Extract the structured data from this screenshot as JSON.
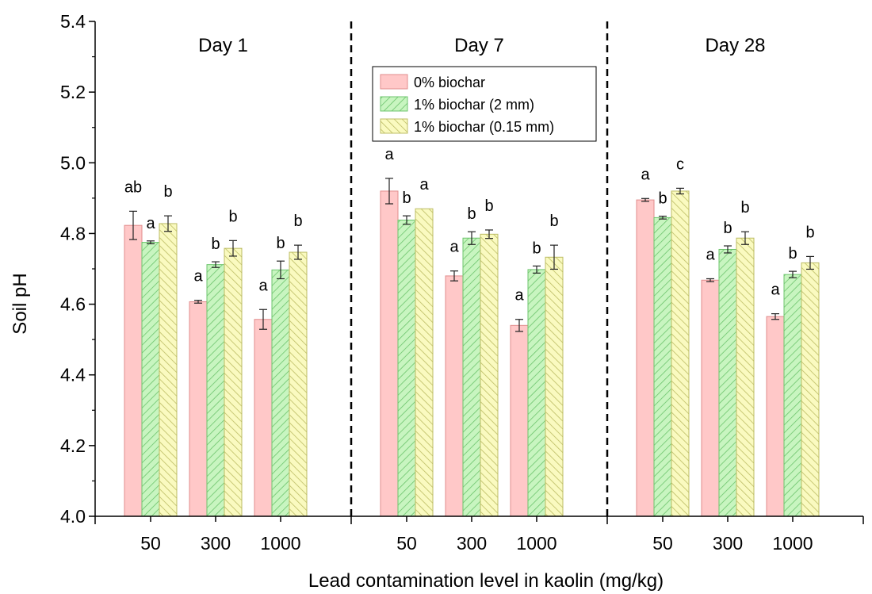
{
  "chart_data": {
    "type": "bar",
    "xlabel": "Lead contamination level in kaolin (mg/kg)",
    "ylabel": "Soil pH",
    "ylim": [
      4.0,
      5.4
    ],
    "yticks": [
      "4.0",
      "4.2",
      "4.4",
      "4.6",
      "4.8",
      "5.0",
      "5.2",
      "5.4"
    ],
    "legend_position": "top-center",
    "grid": false,
    "categories": [
      "50",
      "300",
      "1000"
    ],
    "panels": [
      {
        "label": "Day 1",
        "groups": [
          {
            "category": "50",
            "values": [
              4.823,
              4.775,
              4.828
            ],
            "errors": [
              0.04,
              0.004,
              0.022
            ],
            "letters": [
              "ab",
              "a",
              "b"
            ]
          },
          {
            "category": "300",
            "values": [
              4.607,
              4.712,
              4.758
            ],
            "errors": [
              0.004,
              0.008,
              0.022
            ],
            "letters": [
              "a",
              "b",
              "b"
            ]
          },
          {
            "category": "1000",
            "values": [
              4.557,
              4.697,
              4.747
            ],
            "errors": [
              0.028,
              0.025,
              0.02
            ],
            "letters": [
              "a",
              "b",
              "b"
            ]
          }
        ]
      },
      {
        "label": "Day 7",
        "groups": [
          {
            "category": "50",
            "values": [
              4.92,
              4.838,
              4.87
            ],
            "errors": [
              0.036,
              0.012,
              0.0
            ],
            "letters": [
              "a",
              "b",
              "a"
            ]
          },
          {
            "category": "300",
            "values": [
              4.68,
              4.787,
              4.798
            ],
            "errors": [
              0.014,
              0.018,
              0.012
            ],
            "letters": [
              "a",
              "b",
              "b"
            ]
          },
          {
            "category": "1000",
            "values": [
              4.54,
              4.698,
              4.733
            ],
            "errors": [
              0.017,
              0.01,
              0.034
            ],
            "letters": [
              "a",
              "b",
              "b"
            ]
          }
        ]
      },
      {
        "label": "Day 28",
        "groups": [
          {
            "category": "50",
            "values": [
              4.895,
              4.845,
              4.92
            ],
            "errors": [
              0.004,
              0.004,
              0.008
            ],
            "letters": [
              "a",
              "b",
              "c"
            ]
          },
          {
            "category": "300",
            "values": [
              4.668,
              4.755,
              4.787
            ],
            "errors": [
              0.004,
              0.01,
              0.018
            ],
            "letters": [
              "a",
              "b",
              "b"
            ]
          },
          {
            "category": "1000",
            "values": [
              4.565,
              4.684,
              4.717
            ],
            "errors": [
              0.008,
              0.009,
              0.018
            ],
            "letters": [
              "a",
              "b",
              "b"
            ]
          }
        ]
      }
    ],
    "series": [
      {
        "name": "0% biochar",
        "color": "#ffc8c8",
        "edge": "#e08c8c",
        "pattern": "solid"
      },
      {
        "name": "1% biochar (2 mm)",
        "color": "#c8f5c0",
        "edge": "#6cc46c",
        "pattern": "hatch-right"
      },
      {
        "name": "1% biochar (0.15 mm)",
        "color": "#fafac0",
        "edge": "#bcbc64",
        "pattern": "hatch-left"
      }
    ]
  }
}
